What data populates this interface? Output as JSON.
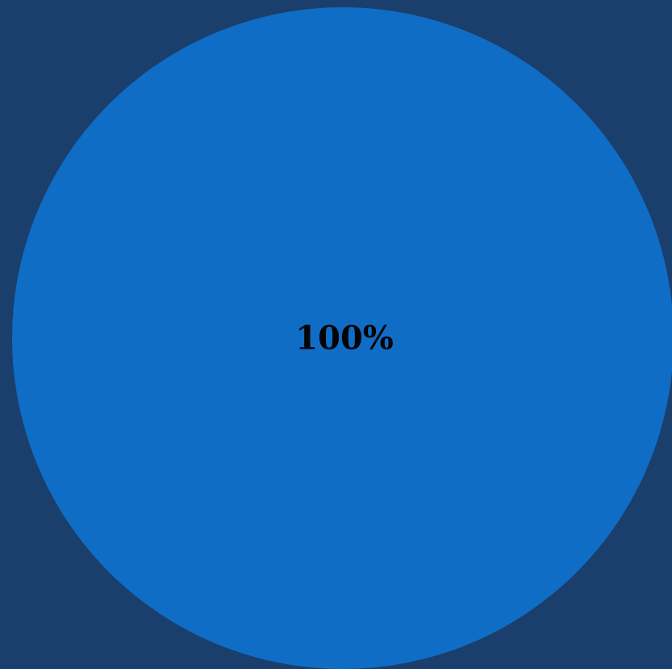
{
  "colors": {
    "background": "#1a3f6c",
    "slice_default": "#106dc5",
    "label": "#050505"
  },
  "chart_data": {
    "type": "pie",
    "title": "",
    "legend": "none",
    "slices": [
      {
        "label": "100%",
        "value": 100,
        "color": "#106dc5"
      }
    ]
  }
}
